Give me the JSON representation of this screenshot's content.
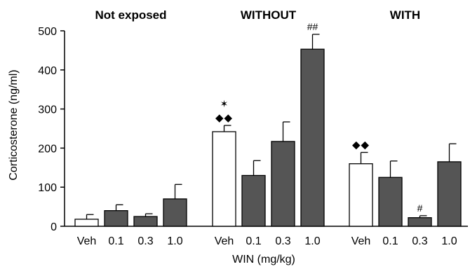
{
  "chart_data": {
    "type": "bar",
    "ylabel": "Corticosterone (ng/ml)",
    "xlabel": "WIN (mg/kg)",
    "ylim": [
      0,
      500
    ],
    "yticks": [
      0,
      100,
      200,
      300,
      400,
      500
    ],
    "colors": {
      "vehicle": "#ffffff",
      "win": "#555555",
      "stroke": "#000000"
    },
    "panels": [
      {
        "title": "Not exposed",
        "categories": [
          "Veh",
          "0.1",
          "0.3",
          "1.0"
        ],
        "values": [
          18,
          40,
          25,
          70
        ],
        "errors": [
          12,
          15,
          7,
          37
        ],
        "annotations": [
          "",
          "",
          "",
          ""
        ]
      },
      {
        "title": "WITHOUT",
        "categories": [
          "Veh",
          "0.1",
          "0.3",
          "1.0"
        ],
        "values": [
          242,
          130,
          217,
          453
        ],
        "errors": [
          16,
          38,
          50,
          38
        ],
        "annotations": [
          "✶\n◆◆",
          "",
          "",
          "##"
        ]
      },
      {
        "title": "WITH",
        "categories": [
          "Veh",
          "0.1",
          "0.3",
          "1.0"
        ],
        "values": [
          160,
          125,
          22,
          165
        ],
        "errors": [
          29,
          42,
          5,
          46
        ],
        "annotations": [
          "◆◆",
          "",
          "#",
          ""
        ]
      }
    ]
  }
}
